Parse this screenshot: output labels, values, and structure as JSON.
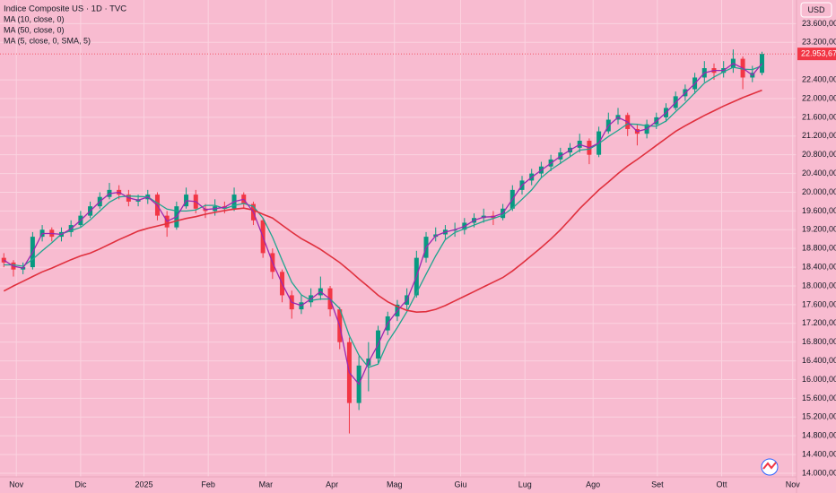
{
  "chart_data": {
    "type": "candlestick",
    "title": "Indice Composite US · 1D · TVC",
    "currency": "USD",
    "up_color": "#089981",
    "down_color": "#f23645",
    "xlim": [
      -0.4,
      82.6
    ],
    "xticks": [
      {
        "value": 1.3,
        "label": "Nov"
      },
      {
        "value": 8.0,
        "label": "Dic"
      },
      {
        "value": 14.6,
        "label": "2025"
      },
      {
        "value": 21.3,
        "label": "Feb"
      },
      {
        "value": 27.3,
        "label": "Mar"
      },
      {
        "value": 34.2,
        "label": "Apr"
      },
      {
        "value": 40.7,
        "label": "Mag"
      },
      {
        "value": 47.6,
        "label": "Giu"
      },
      {
        "value": 54.3,
        "label": "Lug"
      },
      {
        "value": 61.4,
        "label": "Ago"
      },
      {
        "value": 68.1,
        "label": "Set"
      },
      {
        "value": 74.8,
        "label": "Ott"
      },
      {
        "value": 82.2,
        "label": "Nov"
      }
    ],
    "ylim": [
      13923,
      24105
    ],
    "yticks": [
      {
        "value": 14000,
        "label": "14.000,00"
      },
      {
        "value": 14400,
        "label": "14.400,00"
      },
      {
        "value": 14800,
        "label": "14.800,00"
      },
      {
        "value": 15200,
        "label": "15.200,00"
      },
      {
        "value": 15600,
        "label": "15.600,00"
      },
      {
        "value": 16000,
        "label": "16.000,00"
      },
      {
        "value": 16400,
        "label": "16.400,00"
      },
      {
        "value": 16800,
        "label": "16.800,00"
      },
      {
        "value": 17200,
        "label": "17.200,00"
      },
      {
        "value": 17600,
        "label": "17.600,00"
      },
      {
        "value": 18000,
        "label": "18.000,00"
      },
      {
        "value": 18400,
        "label": "18.400,00"
      },
      {
        "value": 18800,
        "label": "18.800,00"
      },
      {
        "value": 19200,
        "label": "19.200,00"
      },
      {
        "value": 19600,
        "label": "19.600,00"
      },
      {
        "value": 20000,
        "label": "20.000,00"
      },
      {
        "value": 20400,
        "label": "20.400,00"
      },
      {
        "value": 20800,
        "label": "20.800,00"
      },
      {
        "value": 21200,
        "label": "21.200,00"
      },
      {
        "value": 21600,
        "label": "21.600,00"
      },
      {
        "value": 22000,
        "label": "22.000,00"
      },
      {
        "value": 22400,
        "label": "22.400,00"
      },
      {
        "value": 23200,
        "label": "23.200,00"
      },
      {
        "value": 23600,
        "label": "23.600,00"
      }
    ],
    "grid": true,
    "last_price": {
      "value": 22953.67,
      "label": "22.953,67"
    },
    "open": [
      18600,
      18500,
      18350,
      18400,
      19050,
      19200,
      19050,
      19150,
      19300,
      19500,
      19700,
      19900,
      20050,
      19950,
      19800,
      19850,
      19950,
      19500,
      19250,
      19700,
      19950,
      19650,
      19600,
      19700,
      19650,
      19950,
      19750,
      19400,
      18700,
      18300,
      17800,
      17500,
      17650,
      17800,
      17950,
      17500,
      16800,
      15500,
      16300,
      16450,
      17050,
      17350,
      17600,
      17800,
      18600,
      19050,
      19100,
      19200,
      19200,
      19350,
      19450,
      19500,
      19450,
      19650,
      20050,
      20250,
      20400,
      20550,
      20700,
      20850,
      20950,
      21100,
      20800,
      21300,
      21550,
      21650,
      21350,
      21250,
      21450,
      21600,
      21800,
      22050,
      22200,
      22450,
      22650,
      22550,
      22650,
      22850,
      22450,
      22550
    ],
    "high": [
      18700,
      18550,
      18500,
      19150,
      19300,
      19250,
      19250,
      19400,
      19600,
      19800,
      20000,
      20200,
      20150,
      20050,
      19950,
      20050,
      20000,
      19600,
      19800,
      20100,
      20050,
      19750,
      19850,
      19800,
      20100,
      20000,
      19800,
      19450,
      18800,
      18350,
      17900,
      17800,
      17950,
      18200,
      18000,
      17550,
      16900,
      16500,
      16800,
      17150,
      17450,
      17700,
      17950,
      18750,
      19150,
      19250,
      19300,
      19350,
      19450,
      19550,
      19650,
      19600,
      19750,
      20150,
      20350,
      20500,
      20650,
      20800,
      20950,
      21050,
      21250,
      21150,
      21400,
      21700,
      21800,
      21700,
      21450,
      21550,
      21700,
      21900,
      22150,
      22300,
      22550,
      22800,
      22750,
      22800,
      23050,
      22900,
      22700,
      23000
    ],
    "low": [
      18400,
      18200,
      18250,
      18350,
      18950,
      18950,
      18950,
      19050,
      19250,
      19450,
      19650,
      19850,
      19850,
      19700,
      19700,
      19750,
      19400,
      19050,
      19200,
      19650,
      19550,
      19450,
      19500,
      19550,
      19600,
      19650,
      19300,
      18600,
      18150,
      17650,
      17300,
      17400,
      17550,
      17700,
      17350,
      16650,
      14850,
      15350,
      15750,
      16350,
      16950,
      17250,
      17500,
      17750,
      18500,
      18950,
      19000,
      19050,
      19100,
      19250,
      19350,
      19300,
      19400,
      19600,
      19950,
      20150,
      20300,
      20450,
      20600,
      20750,
      20850,
      20600,
      20750,
      21250,
      21450,
      21200,
      21000,
      21150,
      21350,
      21500,
      21750,
      21950,
      22100,
      22350,
      22400,
      22450,
      22550,
      22200,
      22350,
      22500
    ],
    "close": [
      18500,
      18350,
      18400,
      19050,
      19200,
      19050,
      19150,
      19300,
      19500,
      19700,
      19900,
      20050,
      19950,
      19800,
      19850,
      19950,
      19500,
      19250,
      19700,
      19950,
      19650,
      19600,
      19700,
      19650,
      19950,
      19750,
      19400,
      18700,
      18300,
      17800,
      17500,
      17650,
      17800,
      17950,
      17500,
      16800,
      15500,
      16300,
      16450,
      17050,
      17350,
      17600,
      17800,
      18600,
      19050,
      19100,
      19200,
      19200,
      19350,
      19450,
      19500,
      19450,
      19650,
      20050,
      20250,
      20400,
      20550,
      20700,
      20850,
      20950,
      21100,
      20800,
      21300,
      21550,
      21650,
      21350,
      21250,
      21450,
      21600,
      21800,
      22050,
      22200,
      22450,
      22650,
      22550,
      22650,
      22850,
      22450,
      22550,
      22953.67
    ],
    "series": [
      {
        "name": "MA (10, close, 0)",
        "color": "#1fa58f",
        "values": [
          18450,
          18450,
          18420,
          18570,
          18750,
          18920,
          19110,
          19180,
          19250,
          19410,
          19600,
          19790,
          19900,
          19920,
          19910,
          19900,
          19770,
          19640,
          19600,
          19600,
          19620,
          19720,
          19720,
          19650,
          19720,
          19760,
          19700,
          19450,
          19040,
          18550,
          18080,
          17810,
          17690,
          17720,
          17720,
          17520,
          16940,
          16520,
          16260,
          16330,
          16800,
          17110,
          17450,
          17850,
          18250,
          18640,
          18990,
          19140,
          19220,
          19300,
          19380,
          19440,
          19510,
          19660,
          19850,
          20050,
          20310,
          20480,
          20620,
          20760,
          20900,
          20920,
          21040,
          21190,
          21320,
          21460,
          21450,
          21420,
          21410,
          21520,
          21720,
          21910,
          22120,
          22330,
          22460,
          22570,
          22670,
          22630,
          22620,
          22700
        ]
      },
      {
        "name": "MA (50, close, 0)",
        "color": "#e0303e",
        "values": [
          17890,
          18000,
          18100,
          18200,
          18300,
          18380,
          18470,
          18560,
          18640,
          18700,
          18790,
          18890,
          18990,
          19080,
          19170,
          19230,
          19280,
          19330,
          19390,
          19440,
          19480,
          19530,
          19570,
          19610,
          19640,
          19660,
          19620,
          19530,
          19450,
          19300,
          19150,
          19010,
          18900,
          18780,
          18640,
          18500,
          18330,
          18150,
          17980,
          17800,
          17660,
          17560,
          17480,
          17440,
          17450,
          17500,
          17580,
          17680,
          17780,
          17880,
          17980,
          18080,
          18180,
          18320,
          18480,
          18650,
          18820,
          19000,
          19200,
          19420,
          19650,
          19850,
          20050,
          20220,
          20400,
          20560,
          20700,
          20850,
          21000,
          21150,
          21300,
          21420,
          21530,
          21640,
          21740,
          21840,
          21930,
          22020,
          22100,
          22180
        ]
      },
      {
        "name": "MA (5, close, 0, SMA, 5)",
        "color": "#9c27b0",
        "values": [
          18550,
          18420,
          18380,
          18720,
          19120,
          19120,
          19100,
          19220,
          19400,
          19600,
          19800,
          19970,
          20000,
          19880,
          19830,
          19900,
          19720,
          19380,
          19480,
          19820,
          19800,
          19630,
          19650,
          19680,
          19800,
          19850,
          19580,
          19050,
          18500,
          18050,
          17650,
          17580,
          17720,
          17880,
          17720,
          17150,
          16150,
          15900,
          16370,
          16750,
          17200,
          17470,
          17700,
          18200,
          18820,
          19070,
          19150,
          19200,
          19270,
          19400,
          19470,
          19480,
          19550,
          19850,
          20150,
          20320,
          20470,
          20620,
          20770,
          20900,
          21020,
          20950,
          21050,
          21420,
          21600,
          21500,
          21300,
          21350,
          21520,
          21700,
          21920,
          22120,
          22320,
          22550,
          22600,
          22600,
          22750,
          22650,
          22500,
          22750
        ]
      }
    ]
  }
}
